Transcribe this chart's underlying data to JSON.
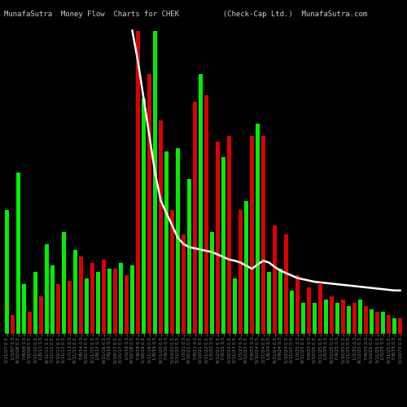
{
  "title": "MunafaSutra  Money Flow  Charts for CHEK          (Check-Cap Ltd.)  MunafaSutra.com",
  "background_color": "#000000",
  "bar_colors": [
    "green",
    "red",
    "green",
    "green",
    "red",
    "green",
    "red",
    "green",
    "green",
    "red",
    "green",
    "red",
    "green",
    "red",
    "green",
    "red",
    "green",
    "red",
    "green",
    "red",
    "green",
    "red",
    "green",
    "red",
    "green",
    "red",
    "green",
    "red",
    "green",
    "red",
    "green",
    "red",
    "green",
    "red",
    "green",
    "red",
    "green",
    "red",
    "green",
    "red",
    "green",
    "red",
    "green",
    "red",
    "green",
    "red",
    "green",
    "red",
    "green",
    "red",
    "green",
    "red",
    "green",
    "red",
    "green",
    "red",
    "green",
    "red",
    "green",
    "red",
    "green",
    "red",
    "green",
    "red",
    "green",
    "red",
    "green",
    "red",
    "green",
    "red"
  ],
  "bar_values": [
    200,
    30,
    260,
    80,
    35,
    100,
    60,
    145,
    110,
    80,
    165,
    85,
    135,
    125,
    90,
    115,
    100,
    120,
    105,
    105,
    115,
    95,
    110,
    490,
    380,
    420,
    490,
    345,
    295,
    200,
    300,
    160,
    250,
    375,
    420,
    385,
    165,
    310,
    285,
    320,
    90,
    200,
    215,
    320,
    340,
    320,
    100,
    175,
    105,
    160,
    70,
    95,
    50,
    75,
    50,
    80,
    55,
    60,
    50,
    55,
    45,
    50,
    55,
    45,
    40,
    35,
    35,
    30,
    25,
    25
  ],
  "line_values": [
    null,
    null,
    null,
    null,
    null,
    null,
    null,
    null,
    null,
    null,
    null,
    null,
    null,
    null,
    null,
    null,
    null,
    null,
    null,
    null,
    null,
    null,
    490,
    440,
    380,
    320,
    260,
    215,
    195,
    175,
    155,
    145,
    140,
    138,
    136,
    134,
    132,
    128,
    124,
    120,
    118,
    115,
    110,
    105,
    112,
    118,
    115,
    108,
    102,
    98,
    94,
    90,
    88,
    86,
    84,
    83,
    82,
    81,
    80,
    79,
    78,
    77,
    76,
    75,
    74,
    73,
    72,
    71,
    70,
    70
  ],
  "tick_labels": [
    "3/11/07 0.5",
    "1/3/07 0.5",
    "9/10/08 0.5",
    "7/8/09 0.5",
    "5/10/09 0.5",
    "3/11/10 0.5",
    "1/8/10 0.5",
    "9/11/11 0.5",
    "7/11/11 0.5",
    "5/10/12 0.5",
    "3/11/12 0.5",
    "1/7/13 0.5",
    "9/11/13 0.5",
    "7/8/14 0.5",
    "5/10/14 0.5",
    "3/11/15 0.5",
    "1/8/15 0.5",
    "9/11/16 0.5",
    "7/8/16 0.5",
    "5/10/17 0.5",
    "3/11/17 0.5",
    "1/3/18 0.5",
    "9/10/18 0.5",
    "7/9/18 0.5",
    "5/10/19 0.5",
    "3/11/19 0.5",
    "1/8/19 0.5",
    "9/11/20 0.5",
    "7/9/20 0.5",
    "5/10/20 0.5",
    "3/11/20 0.5",
    "1/3/21 0.5",
    "9/10/21 0.5",
    "7/8/21 0.5",
    "5/10/21 0.5",
    "3/11/22 0.5",
    "1/5/22 0.5",
    "9/12/22 0.5",
    "7/9/22 0.5",
    "5/10/23 0.5",
    "3/11/23 0.5",
    "1/3/23 0.5",
    "9/12/23 0.5",
    "7/9/23 0.5",
    "5/10/24 0.5",
    "3/11/24 0.5",
    "1/8/24 0.5",
    "9/11/24 0.5",
    "7/9/24 0.5",
    "5/10/24 0.5",
    "3/11/25 0.5",
    "1/3/25 0.5",
    "9/11/25 0.5",
    "7/9/25 0.5",
    "5/10/25 0.5",
    "3/11/25 0.5",
    "1/5/25 0.5",
    "9/12/25 0.5",
    "7/9/25 0.5",
    "5/10/25 0.5",
    "3/11/25 0.5",
    "1/3/25 0.5",
    "9/12/25 0.5",
    "7/9/25 0.5",
    "5/10/25 0.5",
    "3/11/25 0.5",
    "1/5/25 0.5",
    "9/11/25 0.5",
    "7/8/75 0.5",
    "5/10/75 0.5"
  ],
  "line_color": "#ffffff",
  "green_color": "#00ee00",
  "red_color": "#dd0000",
  "title_color": "#cccccc",
  "title_fontsize": 6.5,
  "tick_fontsize": 4.0,
  "ylim": [
    0,
    500
  ],
  "figsize": [
    5.0,
    5.0
  ],
  "dpi": 100
}
